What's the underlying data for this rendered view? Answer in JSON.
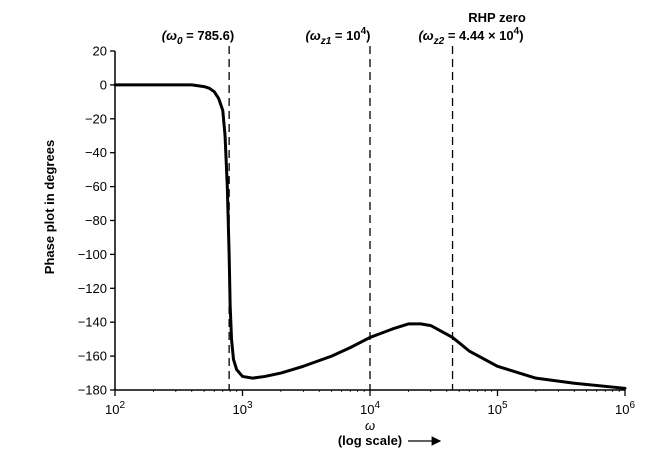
{
  "chart_data": {
    "type": "line",
    "x_scale": "log",
    "xlim": [
      100,
      1000000
    ],
    "ylim": [
      -180,
      20
    ],
    "grid": false,
    "xlabel": "ω",
    "xlabel_sub": "(log scale)",
    "ylabel": "Phase plot in degrees",
    "x_ticks": [
      {
        "value": 100,
        "base": "10",
        "exp": "2"
      },
      {
        "value": 1000,
        "base": "10",
        "exp": "3"
      },
      {
        "value": 10000,
        "base": "10",
        "exp": "4"
      },
      {
        "value": 100000,
        "base": "10",
        "exp": "5"
      },
      {
        "value": 1000000,
        "base": "10",
        "exp": "6"
      }
    ],
    "y_ticks": [
      20,
      0,
      -20,
      -40,
      -60,
      -80,
      -100,
      -120,
      -140,
      -160,
      -180
    ],
    "y_tick_labels": [
      "20",
      "0",
      "−20",
      "−40",
      "−60",
      "−80",
      "−100",
      "−120",
      "−140",
      "−160",
      "−180"
    ],
    "series": [
      {
        "x": [
          100,
          200,
          300,
          400,
          500,
          550,
          600,
          650,
          700,
          730,
          760,
          785.6,
          800,
          820,
          850,
          900,
          1000,
          1200,
          1500,
          2000,
          3000,
          5000,
          7000,
          10000,
          15000,
          20000,
          25000,
          30000,
          44400,
          60000,
          100000,
          200000,
          400000,
          1000000
        ],
        "y": [
          0,
          0,
          0,
          0,
          -1,
          -2,
          -4,
          -8,
          -15,
          -30,
          -60,
          -100,
          -130,
          -150,
          -162,
          -168,
          -172,
          -173,
          -172,
          -170,
          -166,
          -160,
          -155,
          -149,
          -144,
          -141,
          -141,
          -142,
          -149,
          -157,
          -166,
          -173,
          -176,
          -179
        ]
      }
    ],
    "markers": [
      {
        "x": 785.6,
        "label_parts": [
          "(ω",
          "0",
          " = 785.6)"
        ]
      },
      {
        "x": 10000,
        "label_parts": [
          "(ω",
          "z1",
          " = 10",
          "4",
          ")"
        ]
      },
      {
        "x": 44400,
        "label_parts": [
          "(ω",
          "z2",
          " = 4.44 × 10",
          "4",
          ")"
        ],
        "header": "RHP zero"
      }
    ]
  }
}
